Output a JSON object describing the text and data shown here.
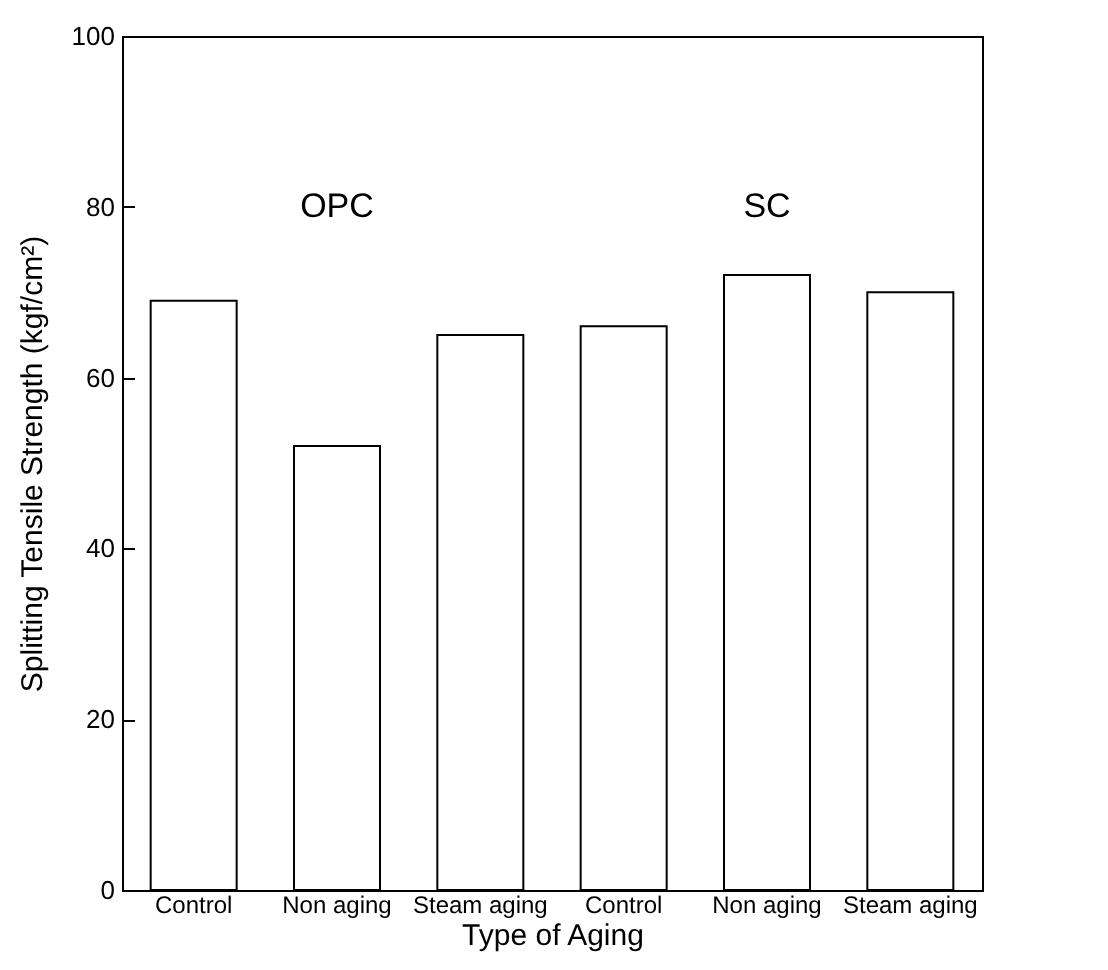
{
  "chart_data": {
    "type": "bar",
    "xlabel": "Type of Aging",
    "ylabel": "Splitting Tensile Strength (kgf/cm²)",
    "categories": [
      "Control",
      "Non aging",
      "Steam aging",
      "Control",
      "Non aging",
      "Steam aging"
    ],
    "values": [
      69,
      52,
      65,
      66,
      72,
      70
    ],
    "color": "#ffffff",
    "ylim": [
      0,
      100
    ],
    "yticks": [
      0,
      20,
      40,
      60,
      80,
      100
    ],
    "grid": false,
    "annotations": [
      "OPC",
      "SC"
    ]
  }
}
